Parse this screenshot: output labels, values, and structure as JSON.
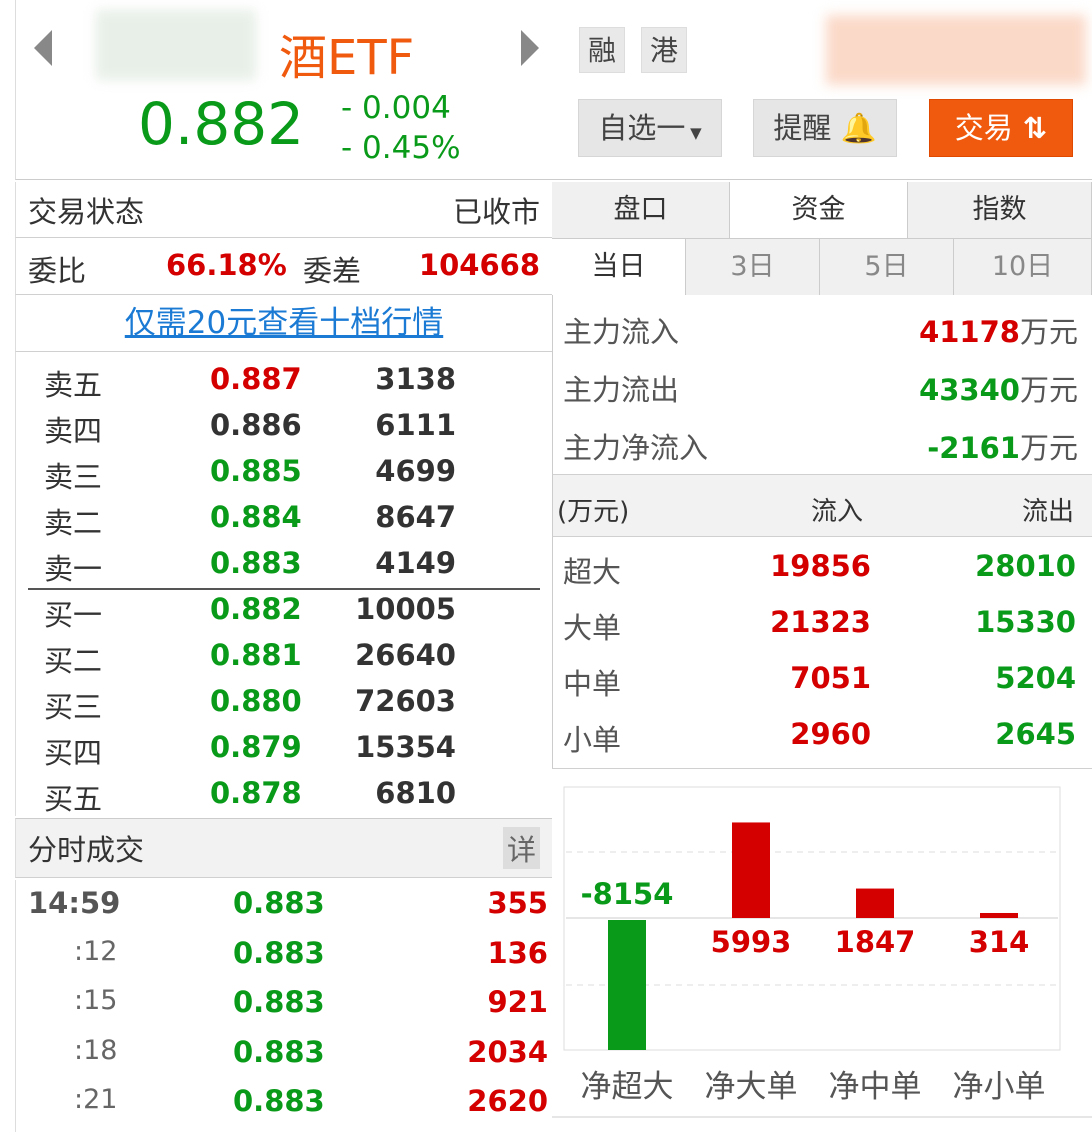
{
  "header": {
    "name": "酒ETF",
    "price": "0.882",
    "change": "- 0.004",
    "change_pct": "- 0.45%",
    "tags": [
      "融",
      "港"
    ],
    "watchlist_label": "自选一",
    "alert_label": "提醒",
    "trade_label": "交易"
  },
  "status": {
    "label": "交易状态",
    "value": "已收市"
  },
  "ratio": {
    "label": "委比",
    "value": "66.18%",
    "diff_label": "委差",
    "diff_value": "104668"
  },
  "promo_link": "仅需20元查看十档行情",
  "orderbook": {
    "sells": [
      {
        "label": "卖五",
        "price": "0.887",
        "vol": "3138",
        "c": "red"
      },
      {
        "label": "卖四",
        "price": "0.886",
        "vol": "6111",
        "c": "gray"
      },
      {
        "label": "卖三",
        "price": "0.885",
        "vol": "4699",
        "c": "green"
      },
      {
        "label": "卖二",
        "price": "0.884",
        "vol": "8647",
        "c": "green"
      },
      {
        "label": "卖一",
        "price": "0.883",
        "vol": "4149",
        "c": "green"
      }
    ],
    "buys": [
      {
        "label": "买一",
        "price": "0.882",
        "vol": "10005"
      },
      {
        "label": "买二",
        "price": "0.881",
        "vol": "26640"
      },
      {
        "label": "买三",
        "price": "0.880",
        "vol": "72603"
      },
      {
        "label": "买四",
        "price": "0.879",
        "vol": "15354"
      },
      {
        "label": "买五",
        "price": "0.878",
        "vol": "6810"
      }
    ]
  },
  "trades": {
    "title": "分时成交",
    "detail_label": "详",
    "rows": [
      {
        "time": "14:59",
        "price": "0.883",
        "vol": "355"
      },
      {
        "time": ":12",
        "price": "0.883",
        "vol": "136"
      },
      {
        "time": ":15",
        "price": "0.883",
        "vol": "921"
      },
      {
        "time": ":18",
        "price": "0.883",
        "vol": "2034"
      },
      {
        "time": ":21",
        "price": "0.883",
        "vol": "2620"
      }
    ]
  },
  "tabs": [
    "盘口",
    "资金",
    "指数"
  ],
  "active_tab": 1,
  "period_tabs": [
    "当日",
    "3日",
    "5日",
    "10日"
  ],
  "flows": [
    {
      "label": "主力流入",
      "value": "41178",
      "unit": "万元",
      "c": "red"
    },
    {
      "label": "主力流出",
      "value": "43340",
      "unit": "万元",
      "c": "green"
    },
    {
      "label": "主力净流入",
      "value": "-2161",
      "unit": "万元",
      "c": "green"
    }
  ],
  "flow_table": {
    "headers": [
      "(万元)",
      "流入",
      "流出"
    ],
    "rows": [
      {
        "label": "超大",
        "in": "19856",
        "out": "28010"
      },
      {
        "label": "大单",
        "in": "21323",
        "out": "15330"
      },
      {
        "label": "中单",
        "in": "7051",
        "out": "5204"
      },
      {
        "label": "小单",
        "in": "2960",
        "out": "2645"
      }
    ]
  },
  "colors": {
    "up": "#d40000",
    "down": "#0a9a1a",
    "accent": "#f05a0f"
  },
  "chart_data": {
    "type": "bar",
    "categories": [
      "净超大",
      "净大单",
      "净中单",
      "净小单"
    ],
    "values": [
      -8154,
      5993,
      1847,
      314
    ],
    "data_labels": [
      "-8154",
      "5993",
      "1847",
      "314"
    ],
    "grid": true
  }
}
